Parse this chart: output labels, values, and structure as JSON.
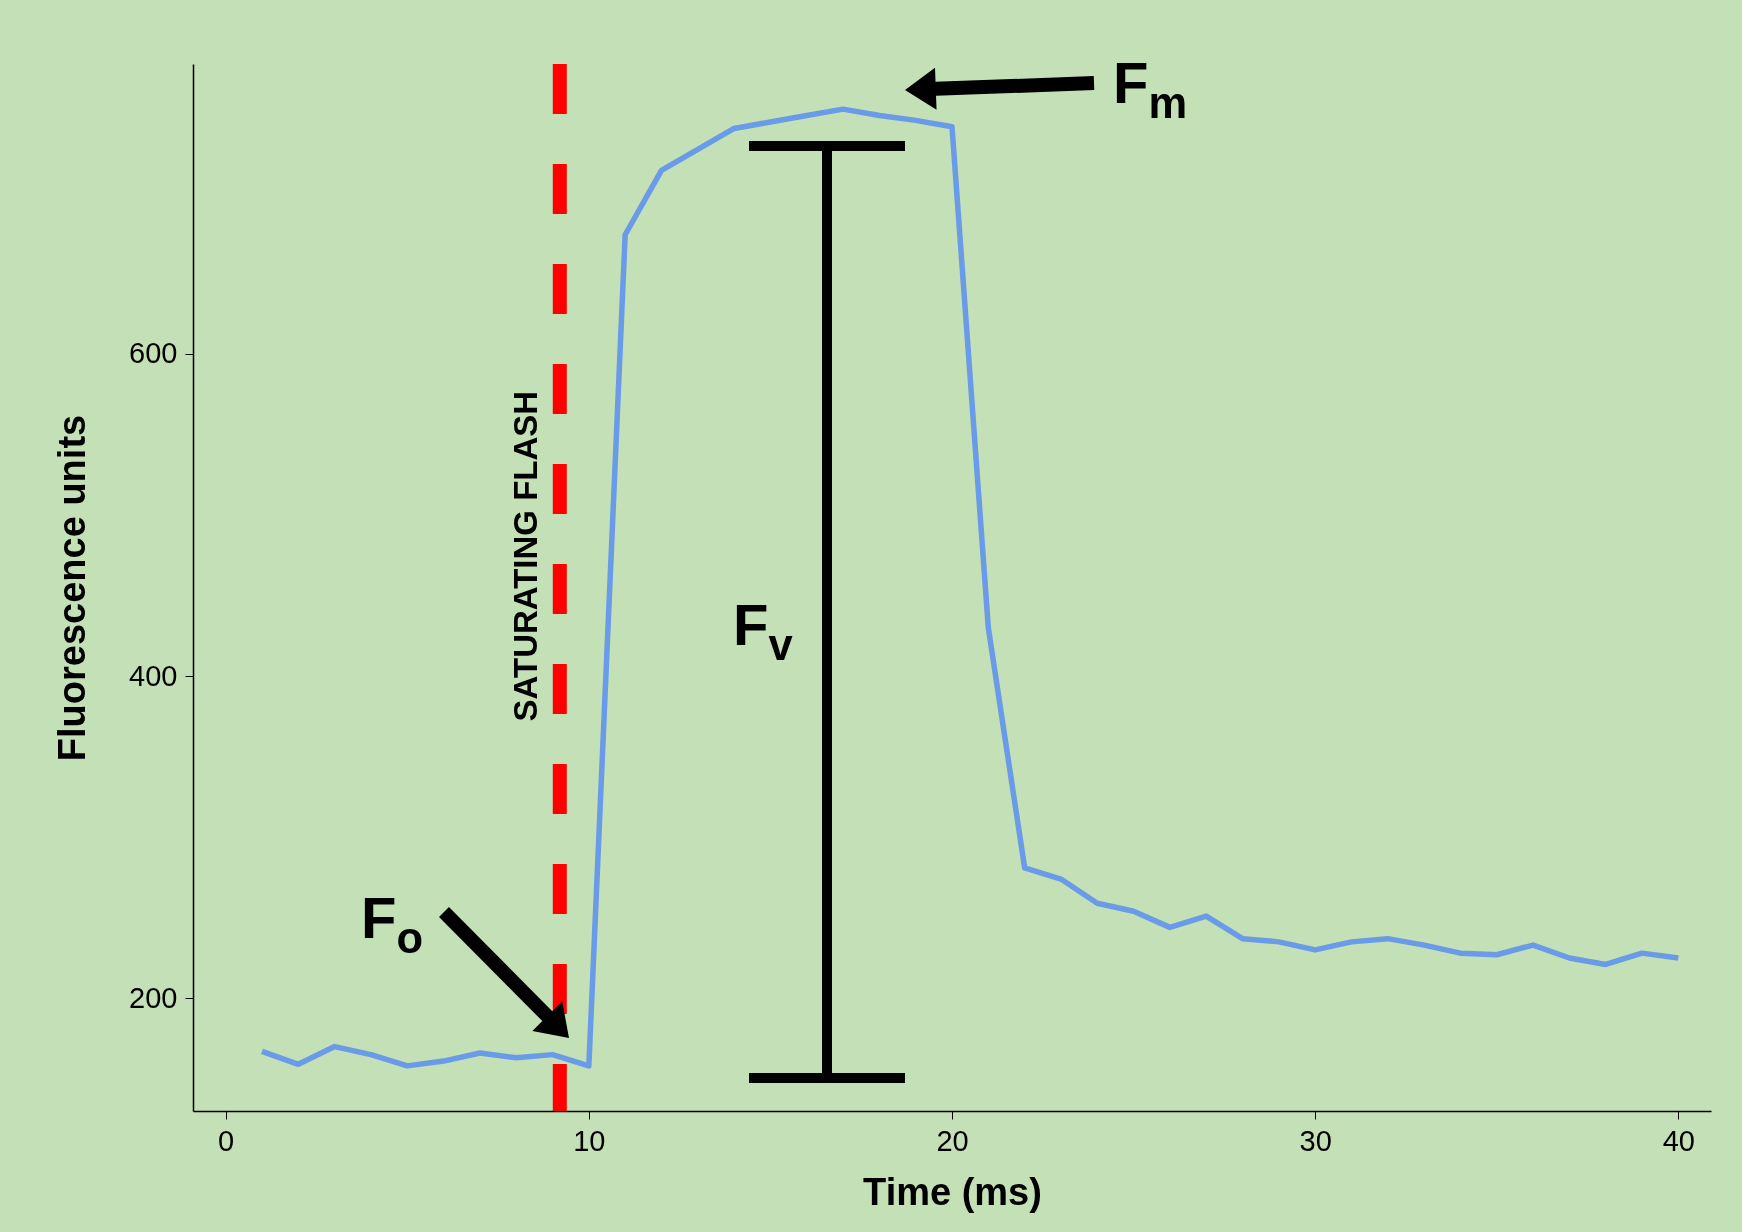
{
  "chart_data": {
    "type": "line",
    "xlabel": "Time (ms)",
    "ylabel": "Fluorescence units",
    "x": [
      1,
      2,
      3,
      4,
      5,
      6,
      7,
      8,
      9,
      10,
      11,
      12,
      13,
      14,
      15,
      16,
      17,
      18,
      19,
      20,
      21,
      22,
      23,
      24,
      25,
      26,
      27,
      28,
      29,
      30,
      31,
      32,
      33,
      34,
      35,
      36,
      37,
      38,
      39,
      40
    ],
    "series": [
      {
        "color": "#6a9be8",
        "values": [
          167,
          159,
          170,
          165,
          158,
          161,
          166,
          163,
          165,
          158,
          674,
          714,
          727,
          740,
          744,
          748,
          752,
          748,
          745,
          741,
          430,
          281,
          274,
          259,
          254,
          244,
          251,
          237,
          235,
          230,
          235,
          237,
          233,
          228,
          227,
          233,
          225,
          221,
          228,
          225
        ]
      }
    ],
    "xlim": [
      -0.9,
      40.9
    ],
    "ylim": [
      130,
      780
    ],
    "xticks": [
      0,
      10,
      20,
      30,
      40
    ],
    "yticks": [
      200,
      400,
      600
    ],
    "grid": false,
    "marker": "none",
    "line_style": "solid",
    "ref_lines": [
      {
        "axis": "x",
        "value": 9.2,
        "label": "SATURATING FLASH",
        "color": "#ff0000",
        "line_style": "dashed"
      }
    ],
    "annotations": [
      "F$_{m}$",
      "F$_{o}$",
      "F$_{v}$"
    ]
  }
}
